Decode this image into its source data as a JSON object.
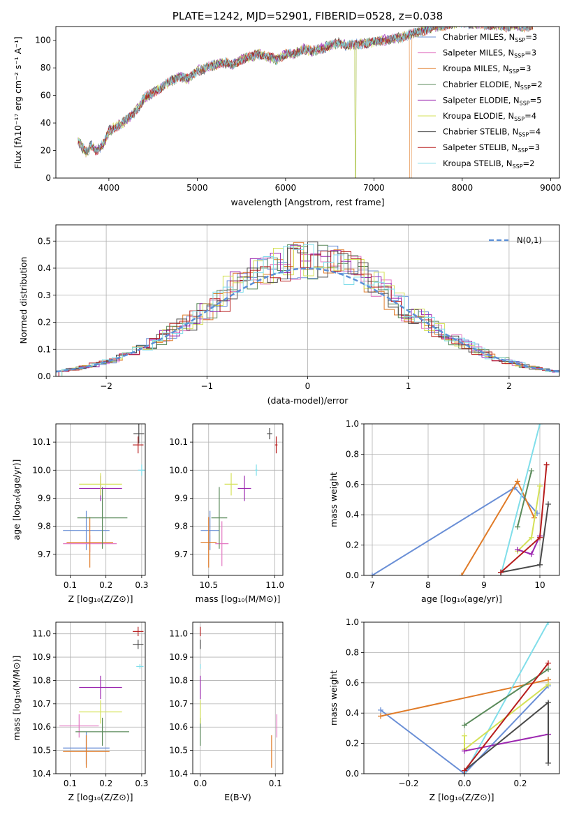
{
  "chart_data": [
    {
      "type": "line",
      "title": "PLATE=1242, MJD=52901, FIBERID=0528, z=0.038",
      "xlabel": "wavelength [Angstrom, rest frame]",
      "ylabel": "Flux [fλ10⁻¹⁷ erg cm⁻² s⁻¹ A⁻¹]",
      "xlim": [
        3400,
        9100
      ],
      "ylim": [
        0,
        110
      ],
      "xticks": [
        4000,
        5000,
        6000,
        7000,
        8000,
        9000
      ],
      "yticks": [
        0,
        20,
        40,
        60,
        80,
        100
      ],
      "grid": false,
      "legend": "top-right",
      "spectrum_envelope": {
        "x": [
          3650,
          3700,
          3750,
          3800,
          3850,
          3900,
          3950,
          4000,
          4100,
          4200,
          4300,
          4400,
          4500,
          4600,
          4700,
          4800,
          4900,
          5000,
          5100,
          5200,
          5300,
          5400,
          5500,
          5600,
          5700,
          5800,
          5900,
          6000,
          6100,
          6200,
          6300,
          6400,
          6500,
          6600,
          6700,
          6800,
          6900,
          7000,
          7100,
          7200,
          7300,
          7400,
          7500,
          7600,
          7700,
          7800,
          7900,
          8000,
          8100,
          8200,
          8300,
          8400,
          8500,
          8600,
          8700,
          8800
        ],
        "y": [
          28,
          22,
          18,
          24,
          20,
          22,
          26,
          34,
          38,
          42,
          48,
          58,
          62,
          66,
          70,
          74,
          72,
          78,
          80,
          82,
          84,
          82,
          86,
          88,
          90,
          88,
          86,
          90,
          90,
          94,
          92,
          94,
          96,
          98,
          96,
          97,
          98,
          99,
          100,
          101,
          102,
          104,
          106,
          108,
          110,
          111,
          112,
          113,
          112,
          112,
          111,
          111,
          110,
          111,
          110,
          111
        ]
      },
      "series": [
        {
          "name": "Chabrier MILES, N_SSP=3",
          "color": "#6a8fd6",
          "drop_at": null
        },
        {
          "name": "Salpeter MILES, N_SSP=3",
          "color": "#e377c2",
          "drop_at": null
        },
        {
          "name": "Kroupa MILES, N_SSP=3",
          "color": "#e07b28",
          "drop_at": 7420
        },
        {
          "name": "Chabrier ELODIE, N_SSP=2",
          "color": "#5a8a5a",
          "drop_at": 6790
        },
        {
          "name": "Salpeter ELODIE, N_SSP=5",
          "color": "#9c27b0",
          "drop_at": null
        },
        {
          "name": "Kroupa ELODIE, N_SSP=4",
          "color": "#d4e157",
          "drop_at": 6790
        },
        {
          "name": "Chabrier STELIB, N_SSP=4",
          "color": "#4a4a4a",
          "drop_at": null
        },
        {
          "name": "Salpeter STELIB, N_SSP=3",
          "color": "#b71c1c",
          "drop_at": null
        },
        {
          "name": "Kroupa STELIB, N_SSP=2",
          "color": "#80deea",
          "drop_at": null
        }
      ]
    },
    {
      "type": "line",
      "xlabel": "(data-model)/error",
      "ylabel": "Normed distribution",
      "xlim": [
        -2.5,
        2.5
      ],
      "ylim": [
        0,
        0.56
      ],
      "xticks": [
        -2,
        -1,
        0,
        1,
        2
      ],
      "yticks": [
        0.0,
        0.1,
        0.2,
        0.3,
        0.4,
        0.5
      ],
      "grid": true,
      "legend": "top-right",
      "bin_width": 0.1,
      "reference": {
        "name": "N(0,1)",
        "color": "#5b8fd6",
        "style": "dashed"
      },
      "base_hist": [
        0.02,
        0.03,
        0.03,
        0.04,
        0.05,
        0.05,
        0.06,
        0.07,
        0.08,
        0.09,
        0.1,
        0.11,
        0.12,
        0.14,
        0.15,
        0.16,
        0.18,
        0.2,
        0.22,
        0.24,
        0.26,
        0.28,
        0.3,
        0.32,
        0.34,
        0.36,
        0.38,
        0.39,
        0.4,
        0.41,
        0.42,
        0.43,
        0.44,
        0.45,
        0.45,
        0.46,
        0.46,
        0.45,
        0.44,
        0.43,
        0.41,
        0.39,
        0.37,
        0.35,
        0.32,
        0.3,
        0.27,
        0.25,
        0.22,
        0.2,
        0.18,
        0.16,
        0.14,
        0.12,
        0.11,
        0.09,
        0.08,
        0.07,
        0.06,
        0.05,
        0.04,
        0.04,
        0.03,
        0.03,
        0.02,
        0.02,
        0.02,
        0.02,
        0.01,
        0.01
      ]
    },
    {
      "type": "scatter",
      "xlabel": "Z [log₁₀(Z/Z⊙)]",
      "ylabel": "age  [log₁₀(age/yr)]",
      "xlim": [
        0.06,
        0.31
      ],
      "ylim": [
        9.625,
        10.165
      ],
      "xticks": [
        0.1,
        0.2,
        0.3
      ],
      "yticks": [
        9.7,
        9.8,
        9.9,
        10.0,
        10.1
      ],
      "points": [
        {
          "c": "#6a8fd6",
          "x": 0.145,
          "xe": 0.065,
          "y": 9.785,
          "ye": 0.07
        },
        {
          "c": "#e377c2",
          "x": 0.155,
          "xe": 0.075,
          "y": 9.738,
          "ye": 0.03
        },
        {
          "c": "#e07b28",
          "x": 0.155,
          "xe": 0.065,
          "y": 9.743,
          "ye": 0.09
        },
        {
          "c": "#5a8a5a",
          "x": 0.19,
          "xe": 0.07,
          "y": 9.83,
          "ye": 0.11
        },
        {
          "c": "#9c27b0",
          "x": 0.185,
          "xe": 0.06,
          "y": 9.935,
          "ye": 0.045
        },
        {
          "c": "#d4e157",
          "x": 0.185,
          "xe": 0.06,
          "y": 9.95,
          "ye": 0.04
        },
        {
          "c": "#4a4a4a",
          "x": 0.292,
          "xe": 0.015,
          "y": 10.13,
          "ye": 0.035
        },
        {
          "c": "#b71c1c",
          "x": 0.29,
          "xe": 0.015,
          "y": 10.09,
          "ye": 0.03
        },
        {
          "c": "#80deea",
          "x": 0.3,
          "xe": 0.01,
          "y": 10.0,
          "ye": 0.02
        }
      ]
    },
    {
      "type": "scatter",
      "xlabel": "mass [log₁₀(M/M⊙)]",
      "ylabel": "",
      "xlim": [
        10.38,
        11.06
      ],
      "ylim": [
        9.625,
        10.165
      ],
      "xticks": [
        10.5,
        11.0
      ],
      "yticks": [
        9.7,
        9.8,
        9.9,
        10.0,
        10.1
      ],
      "points": [
        {
          "c": "#6a8fd6",
          "x": 10.51,
          "xe": 0.07,
          "y": 9.785,
          "ye": 0.07
        },
        {
          "c": "#e377c2",
          "x": 10.6,
          "xe": 0.05,
          "y": 9.738,
          "ye": 0.08
        },
        {
          "c": "#e07b28",
          "x": 10.5,
          "xe": 0.06,
          "y": 9.743,
          "ye": 0.09
        },
        {
          "c": "#5a8a5a",
          "x": 10.58,
          "xe": 0.06,
          "y": 9.83,
          "ye": 0.11
        },
        {
          "c": "#9c27b0",
          "x": 10.77,
          "xe": 0.05,
          "y": 9.935,
          "ye": 0.045
        },
        {
          "c": "#d4e157",
          "x": 10.67,
          "xe": 0.05,
          "y": 9.95,
          "ye": 0.04
        },
        {
          "c": "#4a4a4a",
          "x": 10.96,
          "xe": 0.02,
          "y": 10.13,
          "ye": 0.02
        },
        {
          "c": "#b71c1c",
          "x": 11.01,
          "xe": 0.01,
          "y": 10.09,
          "ye": 0.03
        },
        {
          "c": "#80deea",
          "x": 10.86,
          "xe": 0.01,
          "y": 10.0,
          "ye": 0.02
        }
      ]
    },
    {
      "type": "line",
      "xlabel": "age  [log₁₀(age/yr)]",
      "ylabel": "mass weight",
      "xlim": [
        6.85,
        10.35
      ],
      "ylim": [
        0,
        1.0
      ],
      "xticks": [
        7,
        8,
        9,
        10
      ],
      "yticks": [
        0.0,
        0.2,
        0.4,
        0.6,
        0.8,
        1.0
      ],
      "series": [
        {
          "c": "#6a8fd6",
          "x": [
            7.0,
            9.55,
            9.95
          ],
          "y": [
            0.0,
            0.58,
            0.41
          ]
        },
        {
          "c": "#e07b28",
          "x": [
            8.6,
            9.6,
            9.9
          ],
          "y": [
            0.0,
            0.62,
            0.38
          ]
        },
        {
          "c": "#80deea",
          "x": [
            9.3,
            10.0
          ],
          "y": [
            0.0,
            1.0
          ]
        },
        {
          "c": "#5a8a5a",
          "x": [
            9.6,
            9.85
          ],
          "y": [
            0.32,
            0.69
          ]
        },
        {
          "c": "#d4e157",
          "x": [
            9.6,
            9.85,
            10.0
          ],
          "y": [
            0.16,
            0.25,
            0.59
          ]
        },
        {
          "c": "#9c27b0",
          "x": [
            9.6,
            9.85,
            10.0
          ],
          "y": [
            0.17,
            0.14,
            0.26
          ]
        },
        {
          "c": "#4a4a4a",
          "x": [
            9.3,
            10.0,
            10.15
          ],
          "y": [
            0.02,
            0.07,
            0.47
          ]
        },
        {
          "c": "#b71c1c",
          "x": [
            9.3,
            10.0,
            10.12
          ],
          "y": [
            0.02,
            0.25,
            0.73
          ]
        }
      ]
    },
    {
      "type": "scatter",
      "xlabel": "Z [log₁₀(Z/Z⊙)]",
      "ylabel": "mass [log₁₀(M/M⊙)]",
      "xlim": [
        0.06,
        0.31
      ],
      "ylim": [
        10.4,
        11.05
      ],
      "xticks": [
        0.1,
        0.2,
        0.3
      ],
      "yticks": [
        10.4,
        10.5,
        10.6,
        10.7,
        10.8,
        10.9,
        11.0
      ],
      "points": [
        {
          "c": "#6a8fd6",
          "x": 0.145,
          "xe": 0.065,
          "y": 10.51,
          "ye": 0.07
        },
        {
          "c": "#e377c2",
          "x": 0.125,
          "xe": 0.055,
          "y": 10.605,
          "ye": 0.05
        },
        {
          "c": "#e07b28",
          "x": 0.145,
          "xe": 0.065,
          "y": 10.495,
          "ye": 0.07
        },
        {
          "c": "#5a8a5a",
          "x": 0.19,
          "xe": 0.075,
          "y": 10.58,
          "ye": 0.06
        },
        {
          "c": "#9c27b0",
          "x": 0.185,
          "xe": 0.06,
          "y": 10.77,
          "ye": 0.05
        },
        {
          "c": "#d4e157",
          "x": 0.185,
          "xe": 0.06,
          "y": 10.665,
          "ye": 0.05
        },
        {
          "c": "#4a4a4a",
          "x": 0.29,
          "xe": 0.015,
          "y": 10.955,
          "ye": 0.02
        },
        {
          "c": "#b71c1c",
          "x": 0.29,
          "xe": 0.015,
          "y": 11.01,
          "ye": 0.02
        },
        {
          "c": "#80deea",
          "x": 0.295,
          "xe": 0.01,
          "y": 10.86,
          "ye": 0.01
        }
      ]
    },
    {
      "type": "scatter",
      "xlabel": "E(B-V)",
      "ylabel": "",
      "xlim": [
        -0.01,
        0.11
      ],
      "ylim": [
        10.4,
        11.05
      ],
      "xticks": [
        0.0,
        0.1
      ],
      "yticks": [
        10.4,
        10.5,
        10.6,
        10.7,
        10.8,
        10.9,
        11.0
      ],
      "points": [
        {
          "c": "#e07b28",
          "x": 0.095,
          "xe": 0.0,
          "y": 10.495,
          "ye": 0.07
        },
        {
          "c": "#e377c2",
          "x": 0.102,
          "xe": 0.0,
          "y": 10.605,
          "ye": 0.05
        },
        {
          "c": "#5a8a5a",
          "x": 0.0,
          "xe": 0.0,
          "y": 10.58,
          "ye": 0.06
        },
        {
          "c": "#d4e157",
          "x": 0.0,
          "xe": 0.0,
          "y": 10.665,
          "ye": 0.05
        },
        {
          "c": "#9c27b0",
          "x": 0.0,
          "xe": 0.0,
          "y": 10.77,
          "ye": 0.05
        },
        {
          "c": "#4a4a4a",
          "x": 0.0,
          "xe": 0.0,
          "y": 10.955,
          "ye": 0.02
        },
        {
          "c": "#b71c1c",
          "x": 0.0,
          "xe": 0.0,
          "y": 11.01,
          "ye": 0.02
        },
        {
          "c": "#80deea",
          "x": 0.0,
          "xe": 0.0,
          "y": 10.86,
          "ye": 0.01
        }
      ]
    },
    {
      "type": "line",
      "xlabel": "Z [log₁₀(Z/Z⊙)]",
      "ylabel": "mass weight",
      "xlim": [
        -0.36,
        0.34
      ],
      "ylim": [
        0,
        1.0
      ],
      "xticks": [
        -0.2,
        0.0,
        0.2
      ],
      "yticks": [
        0.0,
        0.2,
        0.4,
        0.6,
        0.8,
        1.0
      ],
      "series": [
        {
          "c": "#6a8fd6",
          "x": [
            -0.3,
            0.0,
            0.3
          ],
          "y": [
            0.42,
            0.0,
            0.58
          ]
        },
        {
          "c": "#e07b28",
          "x": [
            -0.3,
            0.3
          ],
          "y": [
            0.38,
            0.62
          ]
        },
        {
          "c": "#80deea",
          "x": [
            0.0,
            0.3
          ],
          "y": [
            0.0,
            1.0
          ]
        },
        {
          "c": "#5a8a5a",
          "x": [
            0.0,
            0.3
          ],
          "y": [
            0.32,
            0.69
          ]
        },
        {
          "c": "#d4e157",
          "x": [
            0.0,
            0.0,
            0.3
          ],
          "y": [
            0.25,
            0.16,
            0.59
          ]
        },
        {
          "c": "#9c27b0",
          "x": [
            0.0,
            0.3
          ],
          "y": [
            0.15,
            0.26
          ]
        },
        {
          "c": "#4a4a4a",
          "x": [
            0.0,
            0.3,
            0.3
          ],
          "y": [
            0.02,
            0.47,
            0.07
          ]
        },
        {
          "c": "#b71c1c",
          "x": [
            0.0,
            0.3
          ],
          "y": [
            0.02,
            0.73
          ]
        }
      ]
    }
  ]
}
